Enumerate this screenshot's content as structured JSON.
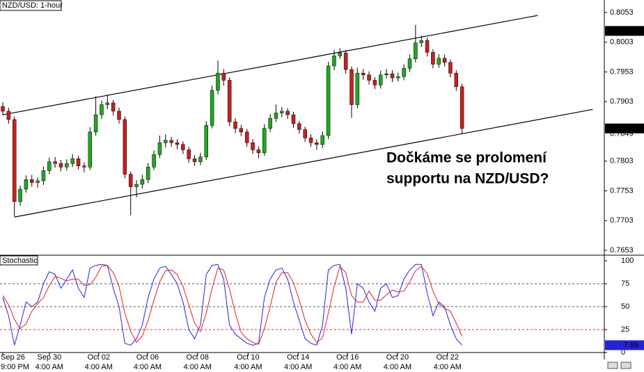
{
  "chart_data": [
    {
      "type": "candlestick",
      "title": "NZD/USD: 1-hour",
      "open": [
        0.7895,
        0.7887,
        0.7873,
        0.7735,
        0.7756,
        0.7772,
        0.7767,
        0.777,
        0.7787,
        0.7802,
        0.7799,
        0.7793,
        0.7799,
        0.7807,
        0.7795,
        0.7793,
        0.7852,
        0.7881,
        0.7898,
        0.7901,
        0.7887,
        0.7873,
        0.7781,
        0.776,
        0.7764,
        0.7772,
        0.7793,
        0.7814,
        0.7834,
        0.7838,
        0.7834,
        0.7831,
        0.7822,
        0.7807,
        0.7802,
        0.781,
        0.7863,
        0.7922,
        0.7951,
        0.7939,
        0.7869,
        0.7858,
        0.7852,
        0.7834,
        0.7822,
        0.7817,
        0.7858,
        0.7875,
        0.7884,
        0.7887,
        0.7881,
        0.7866,
        0.7856,
        0.7842,
        0.7834,
        0.7831,
        0.7846,
        0.7963,
        0.798,
        0.7985,
        0.7957,
        0.7898,
        0.7951,
        0.7948,
        0.7939,
        0.7931,
        0.7948,
        0.795,
        0.7943,
        0.7945,
        0.7959,
        0.7975,
        0.8002,
        0.8006,
        0.7986,
        0.7966,
        0.7976,
        0.7969,
        0.7951,
        0.7928
      ],
      "high": [
        0.7902,
        0.7893,
        0.7878,
        0.7762,
        0.7779,
        0.778,
        0.7776,
        0.7794,
        0.7809,
        0.781,
        0.7805,
        0.7806,
        0.7815,
        0.7812,
        0.7801,
        0.786,
        0.7912,
        0.7905,
        0.7915,
        0.7906,
        0.7893,
        0.7878,
        0.7786,
        0.7771,
        0.778,
        0.78,
        0.7821,
        0.7846,
        0.7848,
        0.7844,
        0.784,
        0.7836,
        0.7827,
        0.7813,
        0.7817,
        0.787,
        0.793,
        0.7972,
        0.7958,
        0.7944,
        0.7875,
        0.7864,
        0.7857,
        0.784,
        0.7828,
        0.7865,
        0.7882,
        0.7898,
        0.7894,
        0.7892,
        0.7886,
        0.7871,
        0.7861,
        0.7848,
        0.784,
        0.7853,
        0.797,
        0.799,
        0.7993,
        0.799,
        0.7962,
        0.796,
        0.7958,
        0.7954,
        0.7944,
        0.7955,
        0.7958,
        0.7956,
        0.7952,
        0.7966,
        0.7982,
        0.8032,
        0.8014,
        0.8011,
        0.7991,
        0.7983,
        0.7982,
        0.7974,
        0.7956,
        0.7933
      ],
      "low": [
        0.788,
        0.7866,
        0.771,
        0.7728,
        0.775,
        0.776,
        0.7758,
        0.7763,
        0.7781,
        0.7792,
        0.7786,
        0.7787,
        0.7793,
        0.7789,
        0.7784,
        0.7788,
        0.7846,
        0.7874,
        0.789,
        0.788,
        0.7866,
        0.7774,
        0.7712,
        0.7742,
        0.7757,
        0.7766,
        0.7788,
        0.7808,
        0.7826,
        0.7827,
        0.7823,
        0.7815,
        0.78,
        0.7795,
        0.7796,
        0.7805,
        0.7858,
        0.7915,
        0.793,
        0.7862,
        0.785,
        0.7845,
        0.7827,
        0.7815,
        0.7808,
        0.7812,
        0.7852,
        0.7869,
        0.7877,
        0.7874,
        0.7859,
        0.7849,
        0.7835,
        0.7827,
        0.7822,
        0.7825,
        0.784,
        0.7956,
        0.7975,
        0.795,
        0.7876,
        0.7892,
        0.794,
        0.7932,
        0.7924,
        0.7925,
        0.7942,
        0.7936,
        0.7937,
        0.7939,
        0.7953,
        0.7969,
        0.7995,
        0.7979,
        0.7959,
        0.796,
        0.7962,
        0.7944,
        0.7921,
        0.7849
      ],
      "close": [
        0.7887,
        0.7873,
        0.7735,
        0.7756,
        0.7772,
        0.7767,
        0.777,
        0.7787,
        0.7802,
        0.7799,
        0.7793,
        0.7799,
        0.7807,
        0.7795,
        0.7793,
        0.7852,
        0.7881,
        0.7898,
        0.7901,
        0.7887,
        0.7873,
        0.7781,
        0.776,
        0.7764,
        0.7772,
        0.7793,
        0.7814,
        0.7834,
        0.7838,
        0.7834,
        0.7831,
        0.7822,
        0.7807,
        0.7802,
        0.781,
        0.7863,
        0.7922,
        0.7951,
        0.7939,
        0.7869,
        0.7858,
        0.7852,
        0.7834,
        0.7822,
        0.7817,
        0.7858,
        0.7875,
        0.7884,
        0.7887,
        0.7881,
        0.7866,
        0.7856,
        0.7842,
        0.7834,
        0.7831,
        0.7846,
        0.7963,
        0.798,
        0.7985,
        0.7957,
        0.7898,
        0.7951,
        0.7948,
        0.7939,
        0.7931,
        0.7948,
        0.795,
        0.7943,
        0.7945,
        0.7959,
        0.7975,
        0.8002,
        0.8006,
        0.7986,
        0.7966,
        0.7976,
        0.7969,
        0.7951,
        0.7928,
        0.7858
      ],
      "up_color": "#1fa81f",
      "down_color": "#c8201e",
      "wick_color": "#000000",
      "ylim": [
        0.7646,
        0.8074
      ],
      "yticks": [
        0.8053,
        0.8003,
        0.7953,
        0.7903,
        0.7803,
        0.7753,
        0.7703,
        0.7653
      ],
      "markers": [
        {
          "value": 0.8022,
          "boxed": true
        },
        {
          "value": 0.7849,
          "boxed": false
        }
      ],
      "trendlines": [
        {
          "x": [
            0,
            92
          ],
          "y": [
            0.7881,
            0.8048
          ]
        },
        {
          "x": [
            2,
            101.5
          ],
          "y": [
            0.7709,
            0.789
          ]
        }
      ],
      "annotation": [
        "Dočkáme se prolomení",
        "supportu na NZD/USD?"
      ]
    },
    {
      "type": "line",
      "title": "Stochastic",
      "series": [
        {
          "color": "#2323d8",
          "values": [
            60,
            40,
            8,
            30,
            55,
            50,
            55,
            75,
            88,
            85,
            70,
            80,
            90,
            70,
            60,
            92,
            95,
            96,
            95,
            70,
            50,
            10,
            8,
            15,
            30,
            60,
            80,
            92,
            94,
            85,
            75,
            55,
            25,
            15,
            30,
            85,
            95,
            96,
            80,
            30,
            20,
            15,
            10,
            8,
            10,
            60,
            80,
            90,
            92,
            80,
            55,
            35,
            15,
            10,
            8,
            30,
            90,
            95,
            96,
            70,
            20,
            75,
            70,
            55,
            45,
            70,
            75,
            60,
            62,
            80,
            90,
            96,
            96,
            65,
            40,
            55,
            50,
            30,
            15,
            7.99
          ]
        },
        {
          "color": "#e02020",
          "values": [
            62,
            52,
            36,
            26,
            31,
            45,
            53,
            60,
            73,
            83,
            81,
            78,
            80,
            80,
            73,
            74,
            82,
            94,
            95,
            87,
            72,
            43,
            23,
            11,
            18,
            35,
            57,
            77,
            89,
            90,
            85,
            72,
            52,
            32,
            23,
            43,
            70,
            92,
            90,
            69,
            43,
            22,
            15,
            11,
            9,
            26,
            50,
            77,
            87,
            87,
            76,
            57,
            35,
            20,
            11,
            16,
            43,
            72,
            94,
            87,
            62,
            55,
            55,
            67,
            57,
            57,
            63,
            68,
            66,
            67,
            77,
            89,
            94,
            86,
            67,
            53,
            48,
            45,
            32,
            18
          ]
        }
      ],
      "ylim": [
        0,
        105.3
      ],
      "yticks": [
        100,
        75,
        50,
        25,
        0
      ],
      "levels": [
        {
          "value": 75,
          "color": "#4a4a8a"
        },
        {
          "value": 50,
          "color": "#555555"
        },
        {
          "value": 25,
          "color": "#d03030"
        }
      ],
      "x_date_labels": [
        {
          "value": 0,
          "label": "Sep 26"
        },
        {
          "value": 8.0,
          "label": "Sep 30"
        },
        {
          "value": 16.5,
          "label": "Oct 02"
        },
        {
          "value": 24.9,
          "label": "Oct 06"
        },
        {
          "value": 33.5,
          "label": "Oct 08"
        },
        {
          "value": 42.2,
          "label": "Oct 10"
        },
        {
          "value": 50.8,
          "label": "Oct 14"
        },
        {
          "value": 59.3,
          "label": "Oct 16"
        },
        {
          "value": 67.9,
          "label": "Oct 20"
        },
        {
          "value": 76.5,
          "label": "Oct 22"
        }
      ],
      "x_time_labels": [
        {
          "value": 0,
          "label": "9:00 PM"
        },
        {
          "value": 8.0,
          "label": "4:00 AM"
        },
        {
          "value": 16.5,
          "label": "4:00 AM"
        },
        {
          "value": 24.9,
          "label": "4:00 AM"
        },
        {
          "value": 33.5,
          "label": "4:00 AM"
        },
        {
          "value": 42.2,
          "label": "4:00 AM"
        },
        {
          "value": 50.8,
          "label": "4:00 AM"
        },
        {
          "value": 59.3,
          "label": "4:00 AM"
        },
        {
          "value": 67.9,
          "label": "4:00 AM"
        },
        {
          "value": 76.5,
          "label": "4:00 AM"
        }
      ]
    }
  ]
}
